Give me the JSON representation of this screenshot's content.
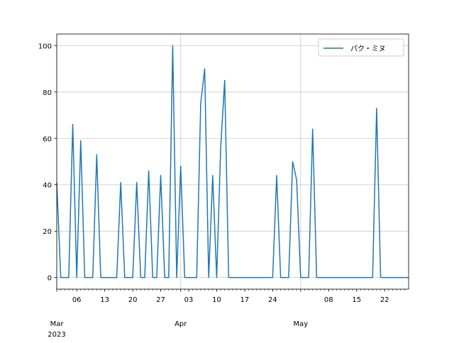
{
  "chart_data": {
    "type": "line",
    "title": "",
    "xlabel": "",
    "ylabel": "",
    "x_range": [
      "2023-03-01",
      "2023-05-28"
    ],
    "ylim": [
      -5,
      105
    ],
    "grid": true,
    "legend": {
      "position": "top-right"
    },
    "y_ticks": [
      0,
      20,
      40,
      60,
      80,
      100
    ],
    "x_major_ticks": [
      {
        "date": "2023-03-01",
        "label": "Mar"
      },
      {
        "date": "2023-04-01",
        "label": "Apr"
      },
      {
        "date": "2023-05-01",
        "label": "May"
      }
    ],
    "x_year_label": "2023",
    "x_minor_ticks": [
      {
        "date": "2023-03-06",
        "label": "06"
      },
      {
        "date": "2023-03-13",
        "label": "13"
      },
      {
        "date": "2023-03-20",
        "label": "20"
      },
      {
        "date": "2023-03-27",
        "label": "27"
      },
      {
        "date": "2023-04-03",
        "label": "03"
      },
      {
        "date": "2023-04-10",
        "label": "10"
      },
      {
        "date": "2023-04-17",
        "label": "17"
      },
      {
        "date": "2023-04-24",
        "label": "24"
      },
      {
        "date": "2023-05-08",
        "label": "08"
      },
      {
        "date": "2023-05-15",
        "label": "15"
      },
      {
        "date": "2023-05-22",
        "label": "22"
      }
    ],
    "series": [
      {
        "name": "パク・ミヌ",
        "color": "#1f77b4",
        "start_date": "2023-03-01",
        "values": [
          41,
          0,
          0,
          0,
          66,
          0,
          59,
          0,
          0,
          0,
          53,
          0,
          0,
          0,
          0,
          0,
          41,
          0,
          0,
          0,
          41,
          0,
          0,
          46,
          0,
          0,
          44,
          0,
          0,
          100,
          0,
          48,
          0,
          0,
          0,
          0,
          75,
          90,
          0,
          44,
          0,
          56,
          85,
          0,
          0,
          0,
          0,
          0,
          0,
          0,
          0,
          0,
          0,
          0,
          0,
          44,
          0,
          0,
          0,
          50,
          42,
          0,
          0,
          0,
          64,
          0,
          0,
          0,
          0,
          0,
          0,
          0,
          0,
          0,
          0,
          0,
          0,
          0,
          0,
          0,
          73,
          0,
          0,
          0,
          0,
          0,
          0,
          0,
          0
        ]
      }
    ]
  }
}
